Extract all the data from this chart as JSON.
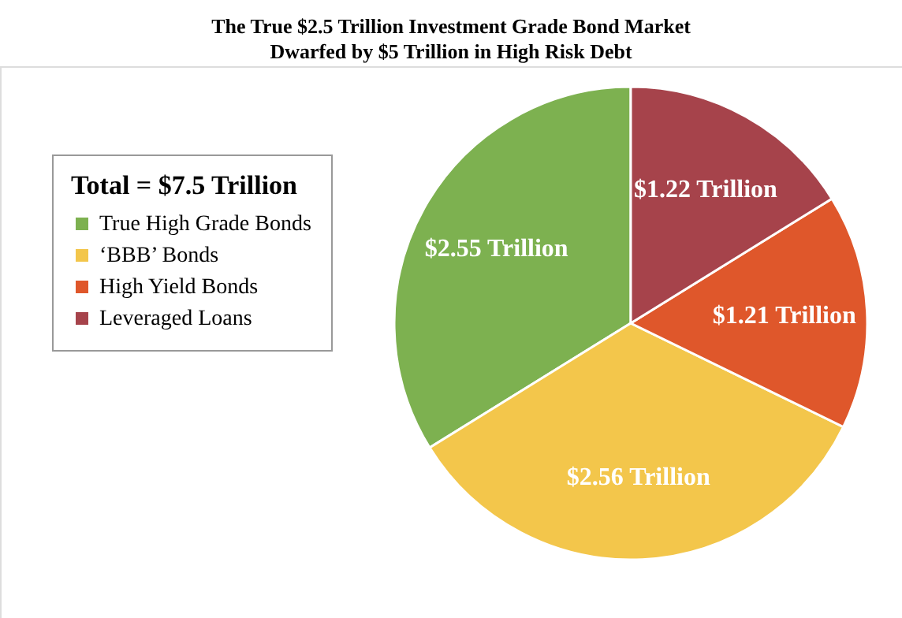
{
  "chart_data": {
    "type": "pie",
    "title": [
      "The True $2.5 Trillion Investment Grade Bond Market",
      "Dwarfed by $5 Trillion in High Risk Debt"
    ],
    "legend_title": "Total = $7.5 Trillion",
    "categories": [
      "True High Grade Bonds",
      "‘BBB’ Bonds",
      "High Yield Bonds",
      "Leveraged Loans"
    ],
    "values": [
      2.55,
      2.56,
      1.21,
      1.22
    ],
    "colors": [
      "#7db150",
      "#f3c64b",
      "#df572b",
      "#a6434b"
    ],
    "value_labels": [
      "$2.55 Trillion",
      "$2.56 Trillion",
      "$1.21 Trillion",
      "$1.22 Trillion"
    ],
    "legend": "left"
  }
}
